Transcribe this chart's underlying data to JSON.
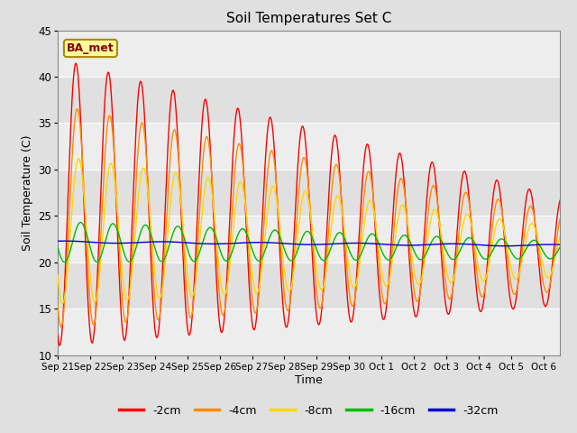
{
  "title": "Soil Temperatures Set C",
  "xlabel": "Time",
  "ylabel": "Soil Temperature (C)",
  "ylim": [
    10,
    45
  ],
  "annotation": "BA_met",
  "annotation_color": "#8B0000",
  "annotation_bg": "#FFFF99",
  "line_colors": {
    "-2cm": "#FF0000",
    "-4cm": "#FF8C00",
    "-8cm": "#FFD700",
    "-16cm": "#00BB00",
    "-32cm": "#0000CC"
  },
  "legend_labels": [
    "-2cm",
    "-4cm",
    "-8cm",
    "-16cm",
    "-32cm"
  ],
  "bg_color": "#E0E0E0",
  "plot_bg": "#E0E0E0",
  "xtick_labels": [
    "Sep 21",
    "Sep 22",
    "Sep 23",
    "Sep 24",
    "Sep 25",
    "Sep 26",
    "Sep 27",
    "Sep 28",
    "Sep 29",
    "Sep 30",
    "Oct 1",
    "Oct 2",
    "Oct 3",
    "Oct 4",
    "Oct 5",
    "Oct 6"
  ],
  "ytick_values": [
    10,
    15,
    20,
    25,
    30,
    35,
    40,
    45
  ],
  "n_days": 16,
  "pts_per_day": 48
}
